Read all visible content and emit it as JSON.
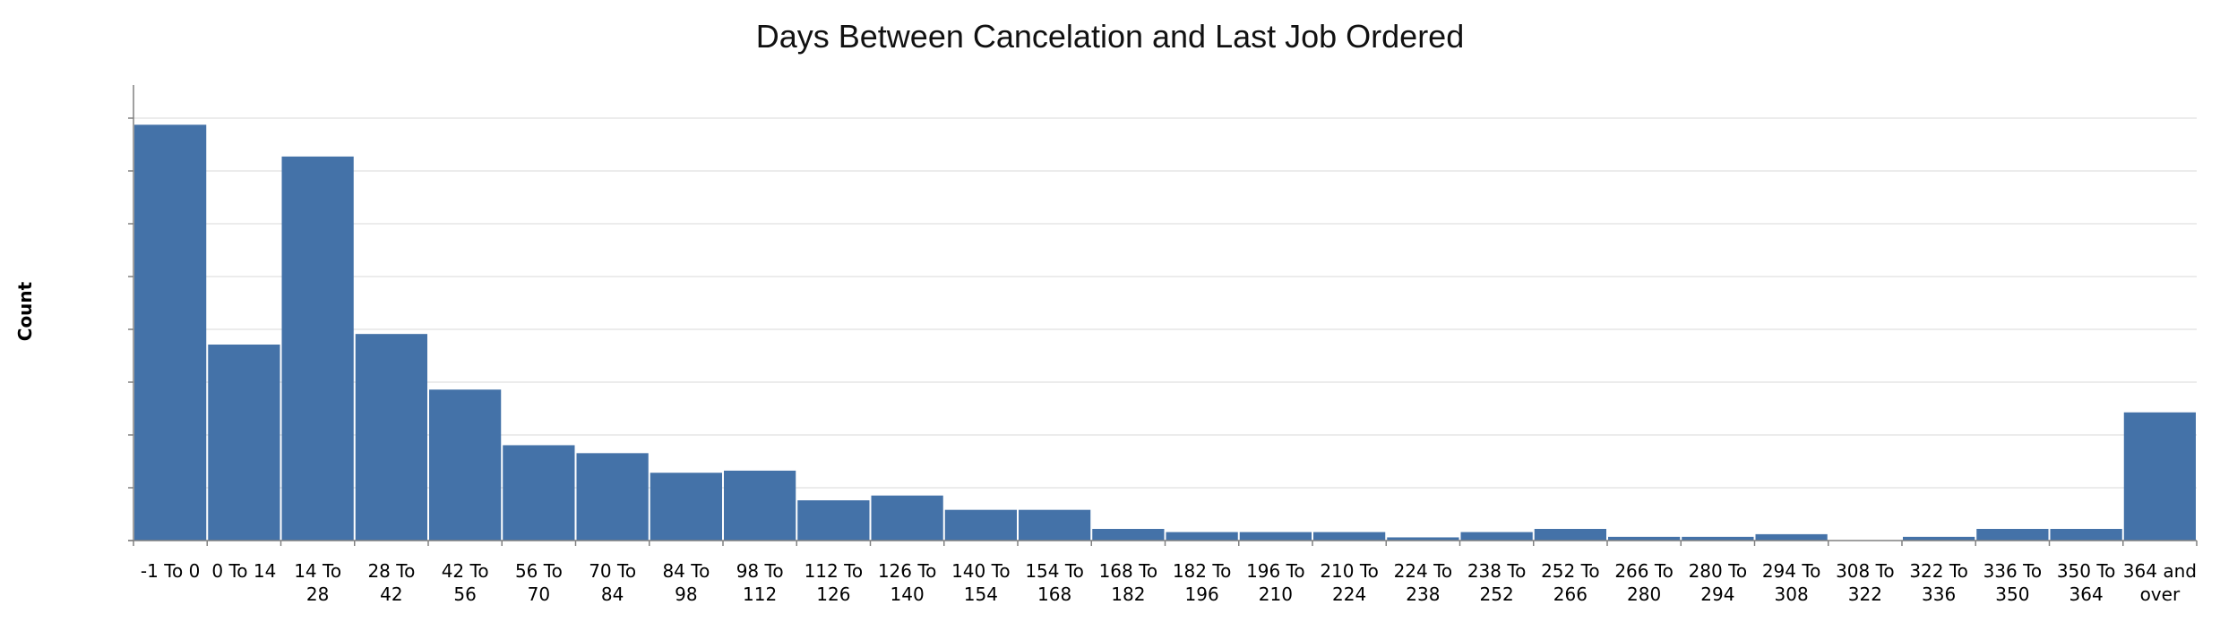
{
  "chart_data": {
    "type": "bar",
    "title": "Days Between Cancelation and Last Job Ordered",
    "xlabel": "",
    "ylabel": "Count",
    "y_tick_labels_shown": false,
    "grid": true,
    "legend": "none",
    "bar_color": "#4472a8",
    "ylim": [
      0,
      8.6
    ],
    "categories": [
      "-1 To 0",
      "0 To 14",
      "14 To 28",
      "28 To 42",
      "42 To 56",
      "56 To 70",
      "70 To 84",
      "84 To 98",
      "98 To 112",
      "112 To 126",
      "126 To 140",
      "140 To 154",
      "154 To 168",
      "168 To 182",
      "182 To 196",
      "196 To 210",
      "210 To 224",
      "224 To 238",
      "238 To 252",
      "252 To 266",
      "266 To 280",
      "280 To 294",
      "294 To 308",
      "308 To 322",
      "322 To 336",
      "336 To 350",
      "350 To 364",
      "364 and over"
    ],
    "category_lines": [
      [
        "-1 To 0"
      ],
      [
        "0 To 14"
      ],
      [
        "14 To",
        "28"
      ],
      [
        "28 To",
        "42"
      ],
      [
        "42 To",
        "56"
      ],
      [
        "56 To",
        "70"
      ],
      [
        "70 To",
        "84"
      ],
      [
        "84 To",
        "98"
      ],
      [
        "98 To",
        "112"
      ],
      [
        "112 To",
        "126"
      ],
      [
        "126 To",
        "140"
      ],
      [
        "140 To",
        "154"
      ],
      [
        "154 To",
        "168"
      ],
      [
        "168 To",
        "182"
      ],
      [
        "182 To",
        "196"
      ],
      [
        "196 To",
        "210"
      ],
      [
        "210 To",
        "224"
      ],
      [
        "224 To",
        "238"
      ],
      [
        "238 To",
        "252"
      ],
      [
        "252 To",
        "266"
      ],
      [
        "266 To",
        "280"
      ],
      [
        "280 To",
        "294"
      ],
      [
        "294 To",
        "308"
      ],
      [
        "308 To",
        "322"
      ],
      [
        "322 To",
        "336"
      ],
      [
        "336 To",
        "350"
      ],
      [
        "350 To",
        "364"
      ],
      [
        "364 and",
        "over"
      ]
    ],
    "values": [
      7.85,
      3.7,
      7.25,
      3.9,
      2.85,
      1.8,
      1.65,
      1.28,
      1.32,
      0.76,
      0.85,
      0.58,
      0.58,
      0.22,
      0.16,
      0.16,
      0.16,
      0.06,
      0.16,
      0.22,
      0.07,
      0.07,
      0.12,
      0.0,
      0.07,
      0.22,
      0.22,
      2.42
    ]
  }
}
